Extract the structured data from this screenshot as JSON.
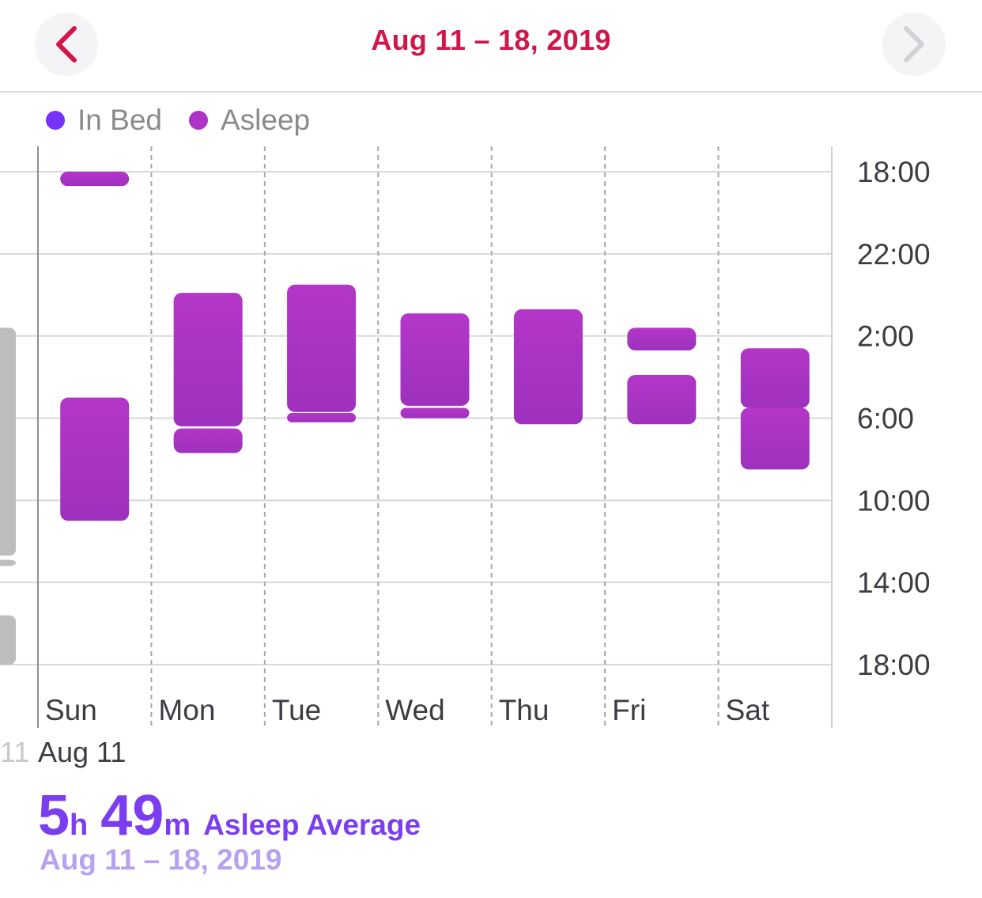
{
  "header": {
    "title": "Aug 11 – 18, 2019",
    "prev_icon": "chevron-left-icon",
    "next_icon": "chevron-right-icon"
  },
  "colors": {
    "accent": "#d11649",
    "in_bed": "#7433f6",
    "asleep": "#ad33c6",
    "asleep_dark": "#9e31bd",
    "summary": "#7b3df0",
    "summary_sub": "#b8a2ef"
  },
  "legend": [
    {
      "label": "In Bed",
      "color": "#7433f6"
    },
    {
      "label": "Asleep",
      "color": "#ad33c6"
    }
  ],
  "summary": {
    "prev_date_fragment": "11",
    "date": "Aug 11",
    "hours": "5",
    "hours_unit": "h",
    "minutes": "49",
    "minutes_unit": "m",
    "label": "Asleep Average",
    "range": "Aug 11 – 18, 2019"
  },
  "chart_data": {
    "type": "range-bar",
    "categories": [
      "Sun",
      "Mon",
      "Tue",
      "Wed",
      "Thu",
      "Fri",
      "Sat"
    ],
    "y_tick_labels": [
      "18:00",
      "22:00",
      "2:00",
      "6:00",
      "10:00",
      "14:00",
      "18:00"
    ],
    "y_range_hours": [
      0,
      24
    ],
    "y_range_note": "hours elapsed from 18:00",
    "grid": true,
    "series": [
      {
        "name": "Asleep",
        "segments": [
          {
            "day": 0,
            "start": 0.0,
            "end": 0.7
          },
          {
            "day": 0,
            "start": 11.0,
            "end": 17.0
          },
          {
            "day": 1,
            "start": 5.9,
            "end": 12.4
          },
          {
            "day": 1,
            "start": 12.5,
            "end": 13.7
          },
          {
            "day": 2,
            "start": 5.5,
            "end": 11.7
          },
          {
            "day": 2,
            "start": 11.75,
            "end": 12.2
          },
          {
            "day": 3,
            "start": 6.9,
            "end": 11.4
          },
          {
            "day": 3,
            "start": 11.5,
            "end": 12.0
          },
          {
            "day": 4,
            "start": 6.7,
            "end": 12.3
          },
          {
            "day": 5,
            "start": 7.6,
            "end": 8.7
          },
          {
            "day": 5,
            "start": 9.9,
            "end": 12.3
          },
          {
            "day": 6,
            "start": 8.6,
            "end": 11.5
          },
          {
            "day": 6,
            "start": 11.5,
            "end": 14.5
          }
        ]
      }
    ],
    "previous_week_ghost": [
      {
        "start": 7.6,
        "end": 18.7
      },
      {
        "start": 18.9,
        "end": 19.2
      },
      {
        "start": 21.6,
        "end": 24.0
      }
    ]
  }
}
